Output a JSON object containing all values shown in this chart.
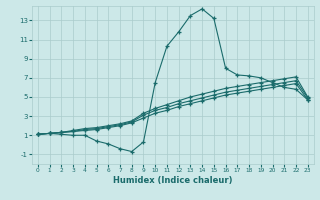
{
  "bg_color": "#cce8e8",
  "grid_color": "#aacccc",
  "line_color": "#1a6b6b",
  "marker": "+",
  "xlabel": "Humidex (Indice chaleur)",
  "xlim": [
    -0.5,
    23.5
  ],
  "ylim": [
    -2.0,
    14.5
  ],
  "yticks": [
    -1,
    1,
    3,
    5,
    7,
    9,
    11,
    13
  ],
  "xticks": [
    0,
    1,
    2,
    3,
    4,
    5,
    6,
    7,
    8,
    9,
    10,
    11,
    12,
    13,
    14,
    15,
    16,
    17,
    18,
    19,
    20,
    21,
    22,
    23
  ],
  "series1_x": [
    0,
    1,
    2,
    3,
    4,
    5,
    6,
    7,
    8,
    9,
    10,
    11,
    12,
    13,
    14,
    15,
    16,
    17,
    18,
    19,
    20,
    21,
    22,
    23
  ],
  "series1_y": [
    1.1,
    1.2,
    1.1,
    1.0,
    1.0,
    0.4,
    0.1,
    -0.4,
    -0.7,
    0.3,
    6.5,
    10.3,
    11.8,
    13.5,
    14.2,
    13.2,
    8.0,
    7.3,
    7.2,
    7.0,
    6.5,
    6.0,
    5.8,
    4.7
  ],
  "series2_x": [
    0,
    1,
    2,
    3,
    4,
    5,
    6,
    7,
    8,
    9,
    10,
    11,
    12,
    13,
    14,
    15,
    16,
    17,
    18,
    19,
    20,
    21,
    22,
    23
  ],
  "series2_y": [
    1.1,
    1.2,
    1.3,
    1.5,
    1.7,
    1.8,
    2.0,
    2.2,
    2.5,
    3.3,
    3.8,
    4.2,
    4.6,
    5.0,
    5.3,
    5.6,
    5.9,
    6.1,
    6.3,
    6.5,
    6.7,
    6.9,
    7.1,
    5.0
  ],
  "series3_x": [
    0,
    1,
    2,
    3,
    4,
    5,
    6,
    7,
    8,
    9,
    10,
    11,
    12,
    13,
    14,
    15,
    16,
    17,
    18,
    19,
    20,
    21,
    22,
    23
  ],
  "series3_y": [
    1.1,
    1.2,
    1.3,
    1.4,
    1.6,
    1.7,
    1.9,
    2.1,
    2.4,
    3.1,
    3.6,
    3.9,
    4.3,
    4.6,
    4.9,
    5.2,
    5.5,
    5.7,
    5.9,
    6.1,
    6.3,
    6.5,
    6.7,
    4.9
  ],
  "series4_x": [
    0,
    1,
    2,
    3,
    4,
    5,
    6,
    7,
    8,
    9,
    10,
    11,
    12,
    13,
    14,
    15,
    16,
    17,
    18,
    19,
    20,
    21,
    22,
    23
  ],
  "series4_y": [
    1.1,
    1.2,
    1.3,
    1.4,
    1.5,
    1.6,
    1.8,
    2.0,
    2.3,
    2.8,
    3.3,
    3.6,
    4.0,
    4.3,
    4.6,
    4.9,
    5.2,
    5.4,
    5.6,
    5.8,
    6.0,
    6.2,
    6.4,
    4.7
  ]
}
